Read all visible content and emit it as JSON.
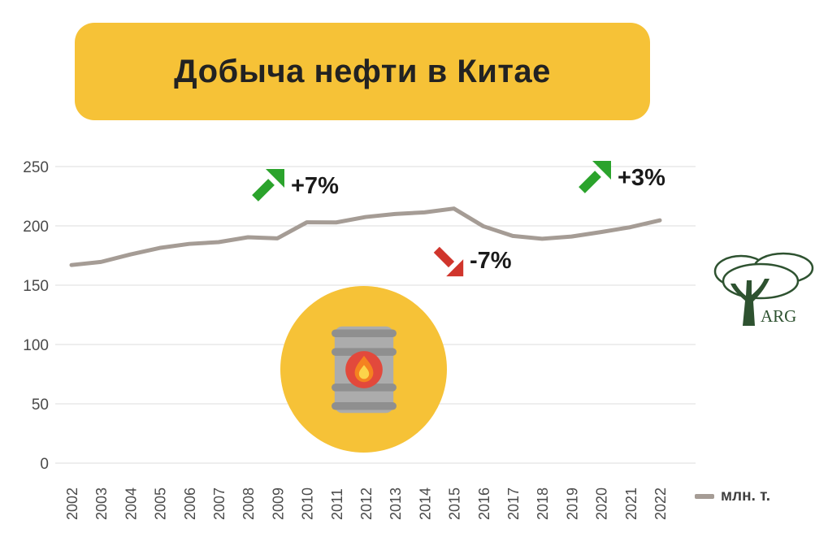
{
  "title": "Добыча нефти в Китае",
  "legend": {
    "label": "млн. т."
  },
  "logo": {
    "text": "ARG"
  },
  "annotations": [
    {
      "label": "+7%",
      "direction": "up"
    },
    {
      "label": "-7%",
      "direction": "down"
    },
    {
      "label": "+3%",
      "direction": "up"
    }
  ],
  "colors": {
    "accent_yellow": "#F6C237",
    "line": "#A59C95",
    "green": "#2BA32C",
    "red": "#D0352C",
    "grid": "#DCDCDC",
    "axis_text": "#4A4A4A",
    "title_text": "#222222",
    "barrel_light": "#ACACAC",
    "barrel_dark": "#8F8F8F",
    "flame_red": "#E2493C",
    "flame_orange": "#F58220",
    "flame_yellow": "#FCD44A",
    "logo_green": "#2E5230"
  },
  "chart_data": {
    "type": "line",
    "title": "Добыча нефти в Китае",
    "x": [
      2002,
      2003,
      2004,
      2005,
      2006,
      2007,
      2008,
      2009,
      2010,
      2011,
      2012,
      2013,
      2014,
      2015,
      2016,
      2017,
      2018,
      2019,
      2020,
      2021,
      2022
    ],
    "series": [
      {
        "name": "млн. т.",
        "values": [
          167.0,
          169.6,
          175.9,
          181.4,
          184.8,
          186.3,
          190.4,
          189.5,
          203.0,
          202.9,
          207.5,
          210.0,
          211.4,
          214.6,
          199.7,
          191.5,
          189.1,
          191.0,
          194.8,
          198.9,
          204.7
        ]
      }
    ],
    "ylim": [
      0,
      250
    ],
    "yticks": [
      0,
      50,
      100,
      150,
      200,
      250
    ],
    "grid": true,
    "legend_position": "bottom-right",
    "annotations": [
      {
        "label": "+7%",
        "near_year": 2009
      },
      {
        "label": "-7%",
        "near_year": 2015
      },
      {
        "label": "+3%",
        "near_year": 2021
      }
    ]
  }
}
